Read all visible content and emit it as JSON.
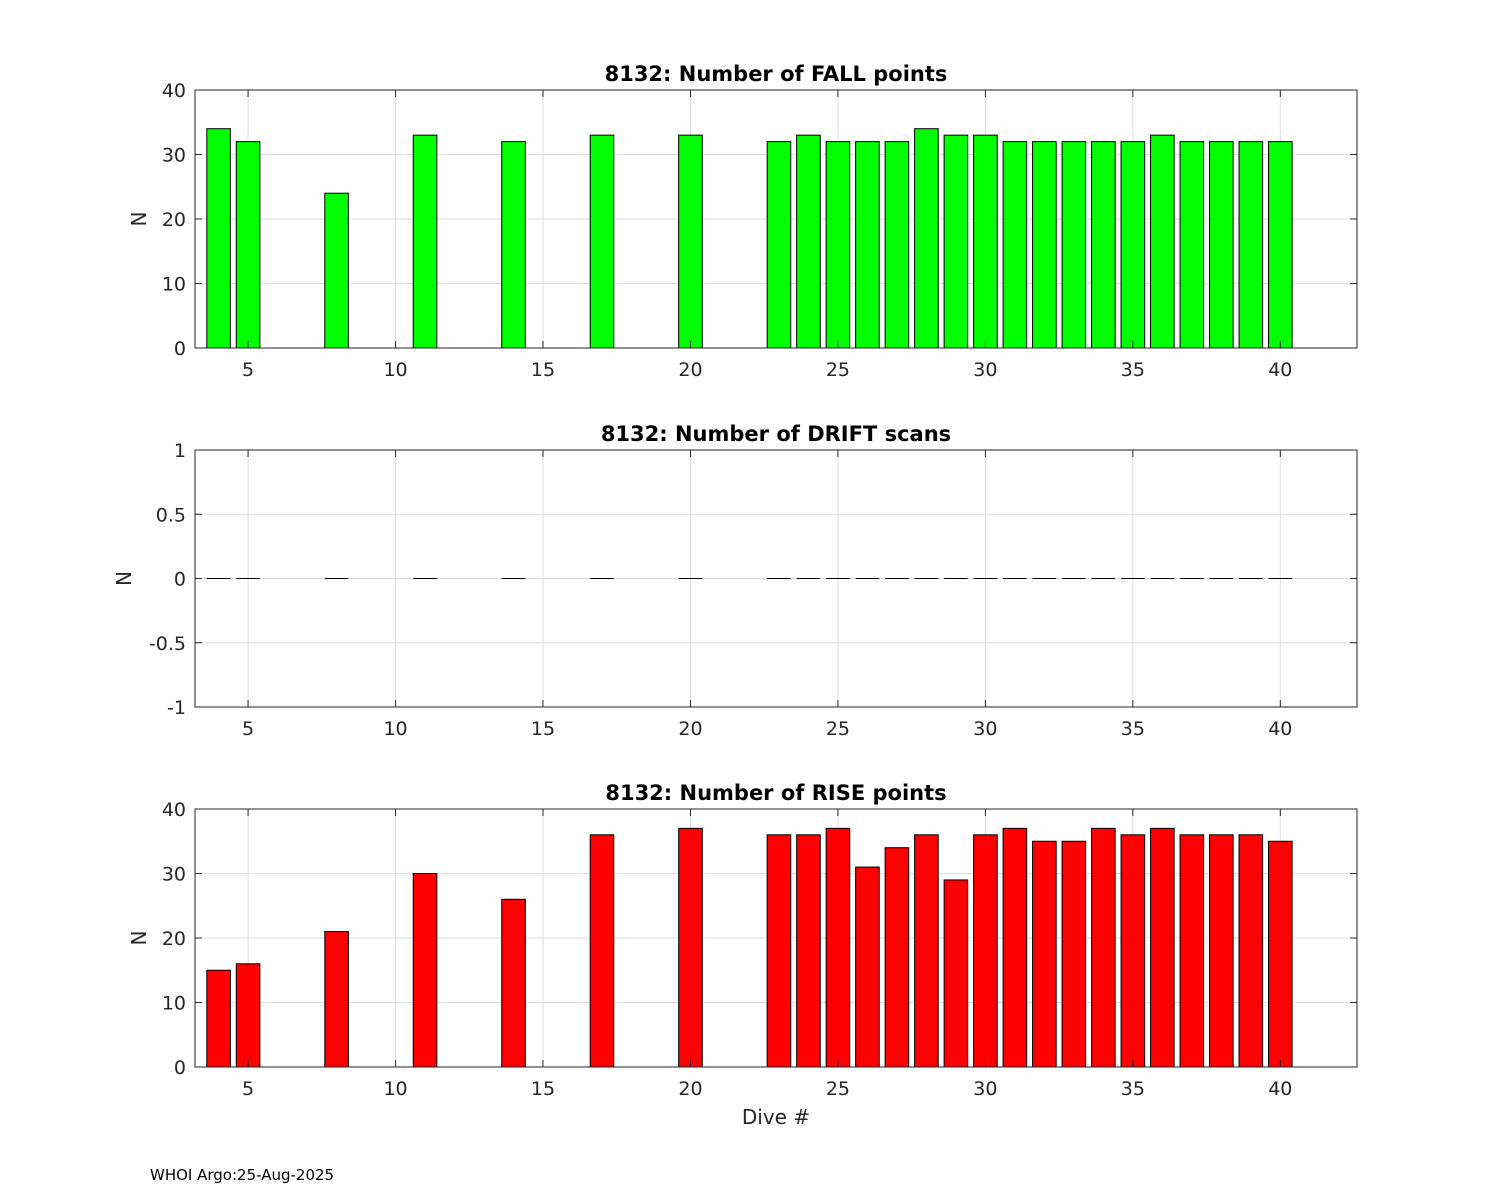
{
  "figure": {
    "footer": "WHOI Argo:25-Aug-2025"
  },
  "chart_data": [
    {
      "type": "bar",
      "title": "8132: Number of FALL points",
      "xlabel": "",
      "ylabel": "N",
      "xlim": [
        3.2,
        42.6
      ],
      "ylim": [
        0,
        40
      ],
      "xticks": [
        5,
        10,
        15,
        20,
        25,
        30,
        35,
        40
      ],
      "yticks": [
        0,
        10,
        20,
        30,
        40
      ],
      "ytick_labels": [
        "0",
        "10",
        "20",
        "30",
        "40"
      ],
      "grid": true,
      "bar_color": "#00ff00",
      "x": [
        4,
        5,
        8,
        11,
        14,
        17,
        20,
        23,
        24,
        25,
        26,
        27,
        28,
        29,
        30,
        31,
        32,
        33,
        34,
        35,
        36,
        37,
        38,
        39,
        40
      ],
      "values": [
        34,
        32,
        24,
        33,
        32,
        33,
        33,
        32,
        33,
        32,
        32,
        32,
        34,
        33,
        33,
        32,
        32,
        32,
        32,
        32,
        33,
        32,
        32,
        32,
        32
      ]
    },
    {
      "type": "bar",
      "title": "8132: Number of DRIFT scans",
      "xlabel": "",
      "ylabel": "N",
      "xlim": [
        3.2,
        42.6
      ],
      "ylim": [
        -1,
        1
      ],
      "xticks": [
        5,
        10,
        15,
        20,
        25,
        30,
        35,
        40
      ],
      "yticks": [
        -1,
        -0.5,
        0,
        0.5,
        1
      ],
      "ytick_labels": [
        "-1",
        "-0.5",
        "0",
        "0.5",
        "1"
      ],
      "grid": true,
      "bar_color": "#000000",
      "x": [
        4,
        5,
        8,
        11,
        14,
        17,
        20,
        23,
        24,
        25,
        26,
        27,
        28,
        29,
        30,
        31,
        32,
        33,
        34,
        35,
        36,
        37,
        38,
        39,
        40
      ],
      "values": [
        0,
        0,
        0,
        0,
        0,
        0,
        0,
        0,
        0,
        0,
        0,
        0,
        0,
        0,
        0,
        0,
        0,
        0,
        0,
        0,
        0,
        0,
        0,
        0,
        0
      ]
    },
    {
      "type": "bar",
      "title": "8132: Number of RISE points",
      "xlabel": "Dive #",
      "ylabel": "N",
      "xlim": [
        3.2,
        42.6
      ],
      "ylim": [
        0,
        40
      ],
      "xticks": [
        5,
        10,
        15,
        20,
        25,
        30,
        35,
        40
      ],
      "yticks": [
        0,
        10,
        20,
        30,
        40
      ],
      "ytick_labels": [
        "0",
        "10",
        "20",
        "30",
        "40"
      ],
      "grid": true,
      "bar_color": "#ff0000",
      "x": [
        4,
        5,
        8,
        11,
        14,
        17,
        20,
        23,
        24,
        25,
        26,
        27,
        28,
        29,
        30,
        31,
        32,
        33,
        34,
        35,
        36,
        37,
        38,
        39,
        40
      ],
      "values": [
        15,
        16,
        21,
        30,
        26,
        36,
        37,
        36,
        36,
        37,
        31,
        34,
        36,
        29,
        36,
        37,
        35,
        35,
        37,
        36,
        37,
        36,
        36,
        36,
        35
      ]
    }
  ]
}
